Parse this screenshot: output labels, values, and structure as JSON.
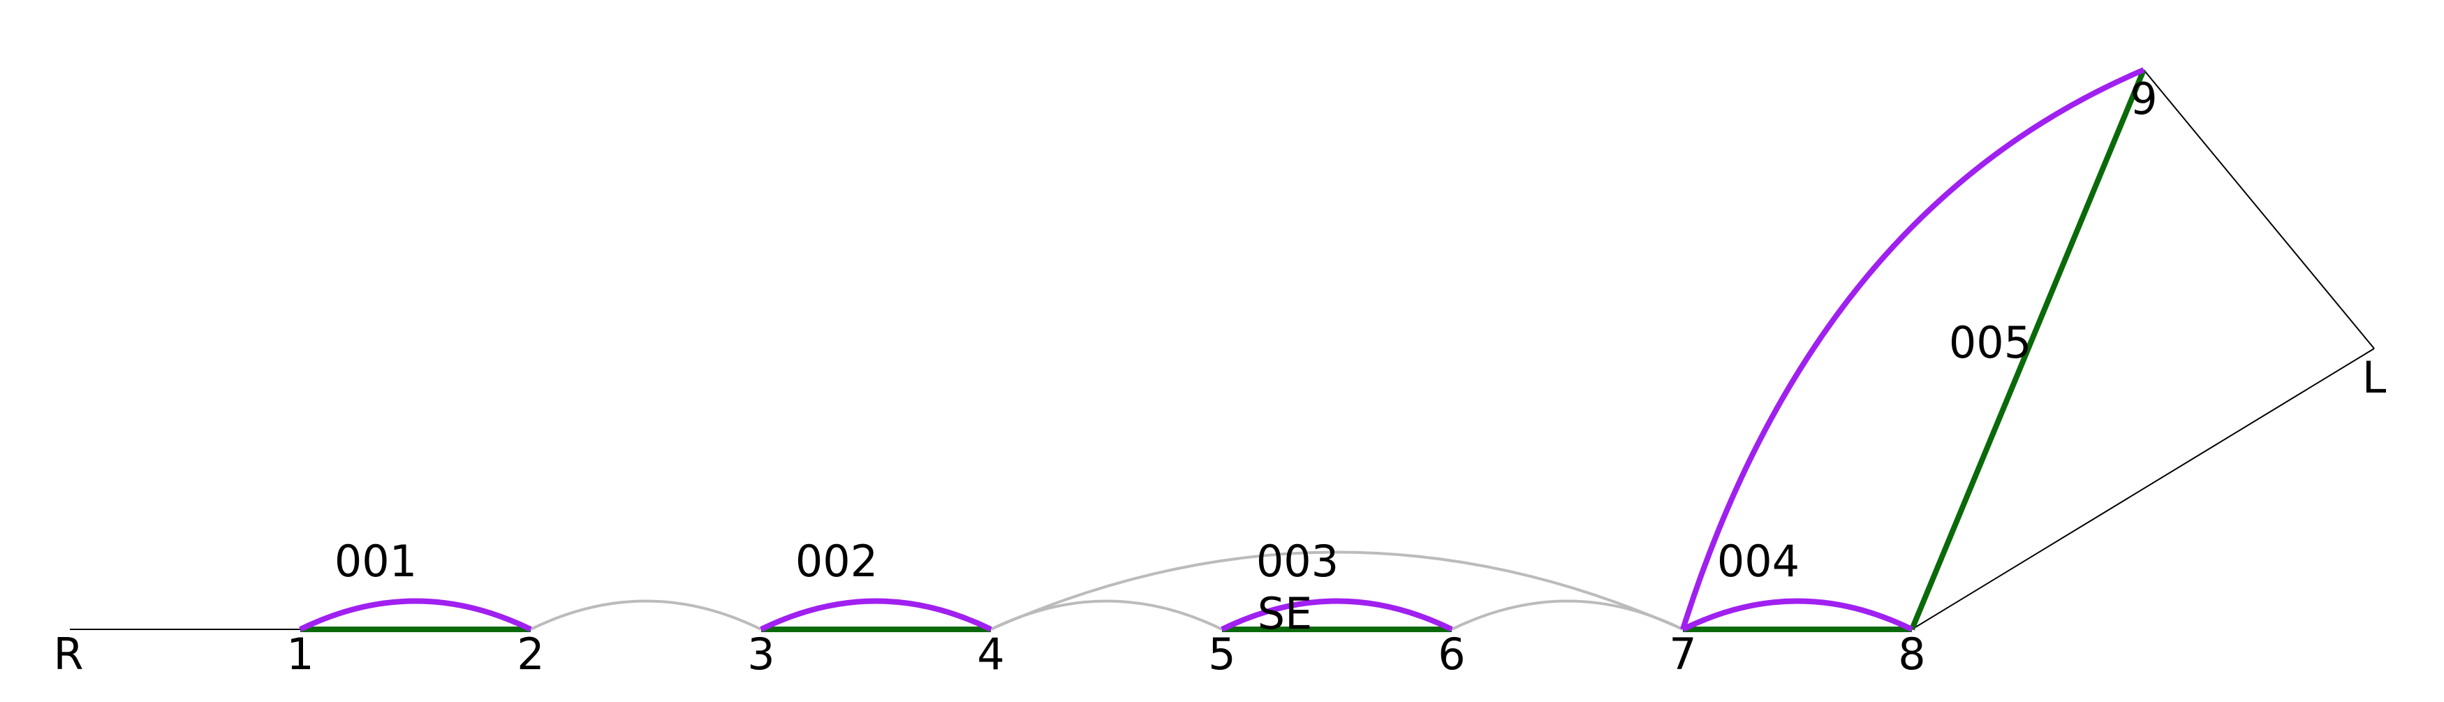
{
  "colors": {
    "background": "#ffffff",
    "segment": "#0a6a0a",
    "arc": "#a020f0",
    "connector": "#bbbbbb",
    "frame": "#000000"
  },
  "nodes": {
    "R": "R",
    "n1": "1",
    "n2": "2",
    "n3": "3",
    "n4": "4",
    "n5": "5",
    "n6": "6",
    "n7": "7",
    "n8": "8",
    "n9": "9",
    "L": "L"
  },
  "segments": {
    "s001": "001",
    "s002": "002",
    "s003": "003",
    "s004": "004",
    "s005": "005"
  },
  "annotations": {
    "se": "SE"
  }
}
